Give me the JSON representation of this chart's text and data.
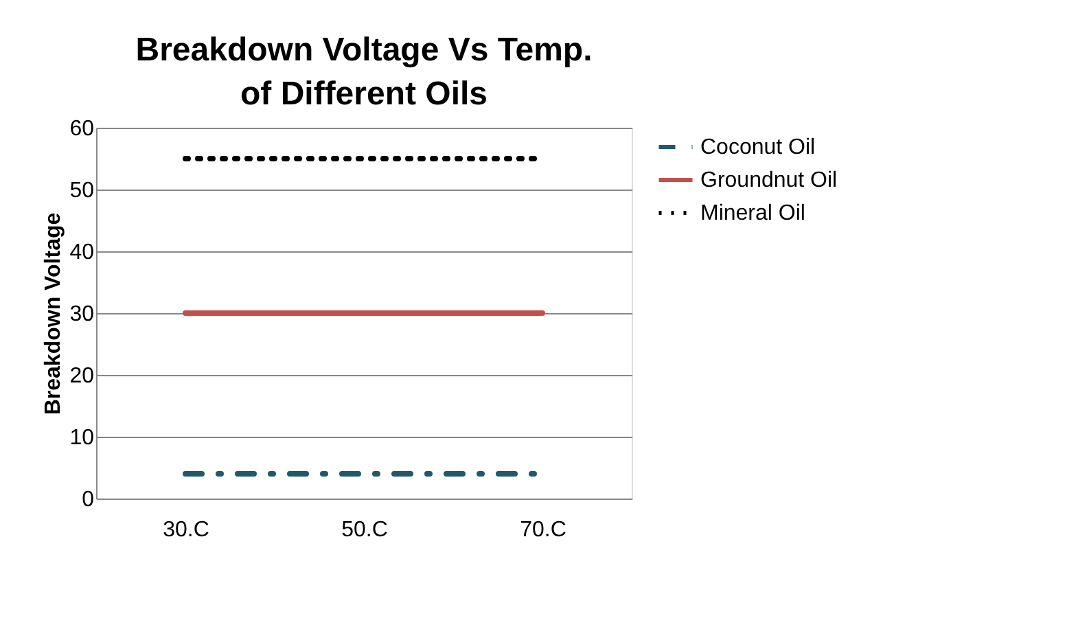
{
  "chart_data": {
    "type": "line",
    "title": "Breakdown Voltage Vs Temp. of Different Oils",
    "ylabel": "Breakdown Voltage",
    "categories": [
      "30.C",
      "50.C",
      "70.C"
    ],
    "series": [
      {
        "name": "Coconut Oil",
        "color": "#215968",
        "values": [
          4,
          4,
          4
        ],
        "line_style": "dashed"
      },
      {
        "name": "Groundnut Oil",
        "color": "#c0504d",
        "values": [
          30,
          30,
          30
        ],
        "line_style": "solid"
      },
      {
        "name": "Mineral Oil",
        "color": "#000000",
        "values": [
          55,
          55,
          55
        ],
        "line_style": "dotted"
      }
    ],
    "ylim": [
      0,
      60
    ],
    "yticks": [
      0,
      10,
      20,
      30,
      40,
      50,
      60
    ],
    "grid": "y",
    "legend": "right",
    "marker": "none"
  }
}
